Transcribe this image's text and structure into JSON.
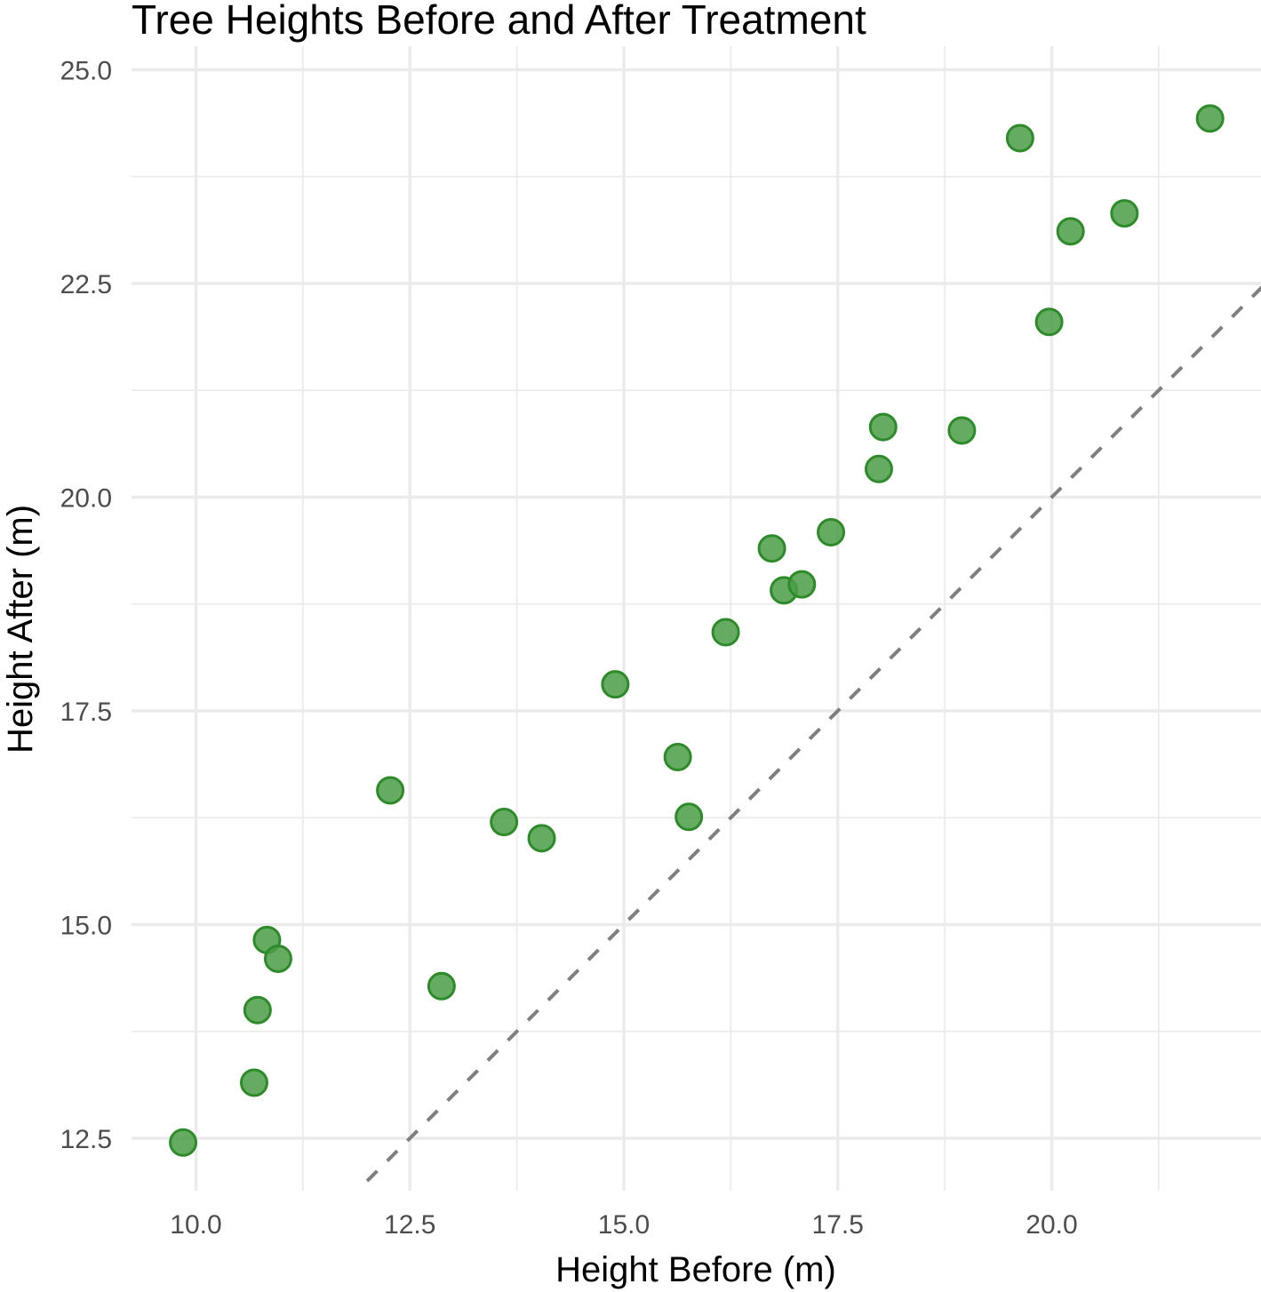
{
  "chart_data": {
    "type": "scatter",
    "title": "Tree Heights Before and After Treatment",
    "xlabel": "Height Before (m)",
    "ylabel": "Height After (m)",
    "xlim": [
      9.6,
      22.5
    ],
    "ylim": [
      12.2,
      25.2
    ],
    "x_ticks": [
      10.0,
      12.5,
      15.0,
      17.5,
      20.0
    ],
    "y_ticks": [
      12.5,
      15.0,
      17.5,
      20.0,
      22.5,
      25.0
    ],
    "x_tick_labels": [
      "10.0",
      "12.5",
      "15.0",
      "17.5",
      "20.0"
    ],
    "y_tick_labels": [
      "12.5",
      "15.0",
      "17.5",
      "20.0",
      "22.5",
      "25.0"
    ],
    "grid": true,
    "reference_line": {
      "from": [
        12.0,
        12.0
      ],
      "to": [
        22.5,
        22.5
      ],
      "color": "#7f7f7f",
      "style": "dashed"
    },
    "point_color": "#4a9e47",
    "point_edge_color": "#2e8b2a",
    "points": [
      {
        "x": 9.85,
        "y": 12.45
      },
      {
        "x": 10.68,
        "y": 13.15
      },
      {
        "x": 10.72,
        "y": 14.0
      },
      {
        "x": 10.83,
        "y": 14.82
      },
      {
        "x": 10.96,
        "y": 14.6
      },
      {
        "x": 12.27,
        "y": 16.57
      },
      {
        "x": 12.87,
        "y": 14.28
      },
      {
        "x": 13.6,
        "y": 16.2
      },
      {
        "x": 14.04,
        "y": 16.01
      },
      {
        "x": 14.9,
        "y": 17.81
      },
      {
        "x": 15.63,
        "y": 16.96
      },
      {
        "x": 15.76,
        "y": 16.26
      },
      {
        "x": 16.19,
        "y": 18.42
      },
      {
        "x": 16.73,
        "y": 19.4
      },
      {
        "x": 16.87,
        "y": 18.91
      },
      {
        "x": 17.08,
        "y": 18.98
      },
      {
        "x": 17.42,
        "y": 19.59
      },
      {
        "x": 17.98,
        "y": 20.33
      },
      {
        "x": 18.03,
        "y": 20.82
      },
      {
        "x": 18.95,
        "y": 20.78
      },
      {
        "x": 19.63,
        "y": 24.2
      },
      {
        "x": 19.97,
        "y": 22.05
      },
      {
        "x": 20.22,
        "y": 23.11
      },
      {
        "x": 20.85,
        "y": 23.32
      },
      {
        "x": 21.85,
        "y": 24.43
      }
    ]
  }
}
